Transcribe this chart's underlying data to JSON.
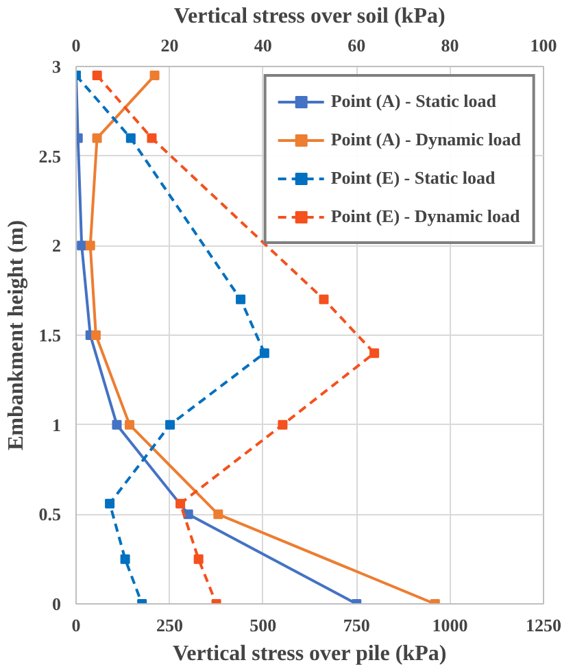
{
  "chart_data": {
    "type": "line",
    "xlabel": "Vertical stress over pile (kPa)",
    "x2label": "Vertical stress over soil (kPa)",
    "ylabel": "Embankment height (m)",
    "xlim": [
      0,
      1250
    ],
    "xticks": [
      0,
      250,
      500,
      750,
      1000,
      1250
    ],
    "x2lim": [
      0,
      100
    ],
    "x2ticks": [
      0,
      20,
      40,
      60,
      80,
      100
    ],
    "ylim": [
      0,
      3
    ],
    "yticks": [
      0,
      0.5,
      1,
      1.5,
      2,
      2.5,
      3
    ],
    "grid": true,
    "legend": "top right",
    "marker": "square",
    "series": [
      {
        "name": "Point (A) - Static load",
        "color": "#4472c4",
        "line_style": "solid",
        "x": [
          0,
          5,
          15,
          38,
          109,
          300,
          750
        ],
        "values": [
          2.95,
          2.6,
          2.0,
          1.5,
          1.0,
          0.5,
          0
        ]
      },
      {
        "name": "Point (A) - Dynamic load",
        "color": "#ed7d31",
        "line_style": "solid",
        "x": [
          210,
          56,
          38,
          53,
          143,
          380,
          960
        ],
        "values": [
          2.95,
          2.6,
          2.0,
          1.5,
          1.0,
          0.5,
          0
        ]
      },
      {
        "name": "Point (E) - Static load",
        "color": "#0070c0",
        "line_style": "dashed",
        "axis": "x2",
        "x": [
          0,
          11.7,
          35.2,
          40.3,
          20.1,
          7.2,
          10.5,
          14.1
        ],
        "values": [
          2.95,
          2.6,
          1.7,
          1.4,
          1.0,
          0.56,
          0.25,
          0
        ]
      },
      {
        "name": "Point (E) - Dynamic load",
        "color": "#f4511e",
        "line_style": "dashed",
        "axis": "x2",
        "x": [
          4.5,
          16.2,
          53,
          63.8,
          44.2,
          22.3,
          26.2,
          30
        ],
        "values": [
          2.95,
          2.6,
          1.7,
          1.4,
          1.0,
          0.56,
          0.25,
          0
        ]
      }
    ]
  }
}
